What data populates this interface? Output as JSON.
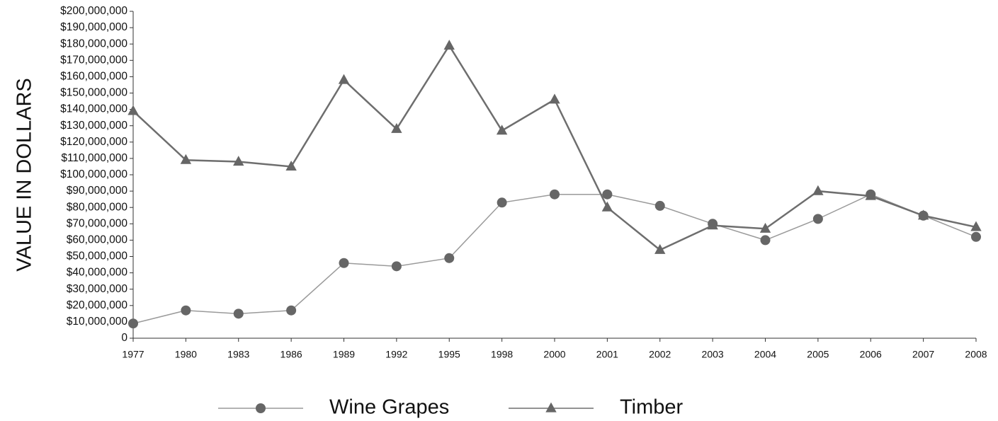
{
  "chart_data": {
    "type": "line",
    "y_label": "VALUE IN DOLLARS",
    "categories": [
      "1977",
      "1980",
      "1983",
      "1986",
      "1989",
      "1992",
      "1995",
      "1998",
      "2000",
      "2001",
      "2002",
      "2003",
      "2004",
      "2005",
      "2006",
      "2007",
      "2008"
    ],
    "series": [
      {
        "name": "Wine Grapes",
        "color": "#9a9a9a",
        "marker_color": "#666666",
        "marker": "circle",
        "values": [
          9000000,
          17000000,
          15000000,
          17000000,
          46000000,
          44000000,
          49000000,
          83000000,
          88000000,
          88000000,
          81000000,
          70000000,
          60000000,
          73000000,
          88000000,
          75000000,
          62000000
        ]
      },
      {
        "name": "Timber",
        "color": "#6e6e6e",
        "marker_color": "#666666",
        "marker": "triangle",
        "values": [
          139000000,
          109000000,
          108000000,
          105000000,
          158000000,
          128000000,
          179000000,
          127000000,
          146000000,
          80000000,
          54000000,
          69000000,
          67000000,
          90000000,
          87000000,
          75000000,
          68000000
        ]
      }
    ],
    "ylim": [
      0,
      200000000
    ],
    "yticks": [
      0,
      {
        "value": 10000000,
        "label": "$10,000,000"
      },
      {
        "value": 20000000,
        "label": "$20,000,000"
      },
      {
        "value": 30000000,
        "label": "$30,000,000"
      },
      {
        "value": 40000000,
        "label": "$40,000,000"
      },
      {
        "value": 50000000,
        "label": "$50,000,000"
      },
      {
        "value": 60000000,
        "label": "$60,000,000"
      },
      {
        "value": 70000000,
        "label": "$70,000,000"
      },
      {
        "value": 80000000,
        "label": "$80,000,000"
      },
      {
        "value": 90000000,
        "label": "$90,000,000"
      },
      {
        "value": 100000000,
        "label": "$100,000,000"
      },
      {
        "value": 110000000,
        "label": "$110,000,000"
      },
      {
        "value": 120000000,
        "label": "$120,000,000"
      },
      {
        "value": 130000000,
        "label": "$130,000,000"
      },
      {
        "value": 140000000,
        "label": "$140,000,000"
      },
      {
        "value": 150000000,
        "label": "$150,000,000"
      },
      {
        "value": 160000000,
        "label": "$160,000,000"
      },
      {
        "value": 170000000,
        "label": "$170,000,000"
      },
      {
        "value": 180000000,
        "label": "$180,000,000"
      },
      {
        "value": 190000000,
        "label": "$190,000,000"
      },
      {
        "value": 200000000,
        "label": "$200,000,000"
      }
    ],
    "grid": false,
    "legend": "bottom"
  }
}
